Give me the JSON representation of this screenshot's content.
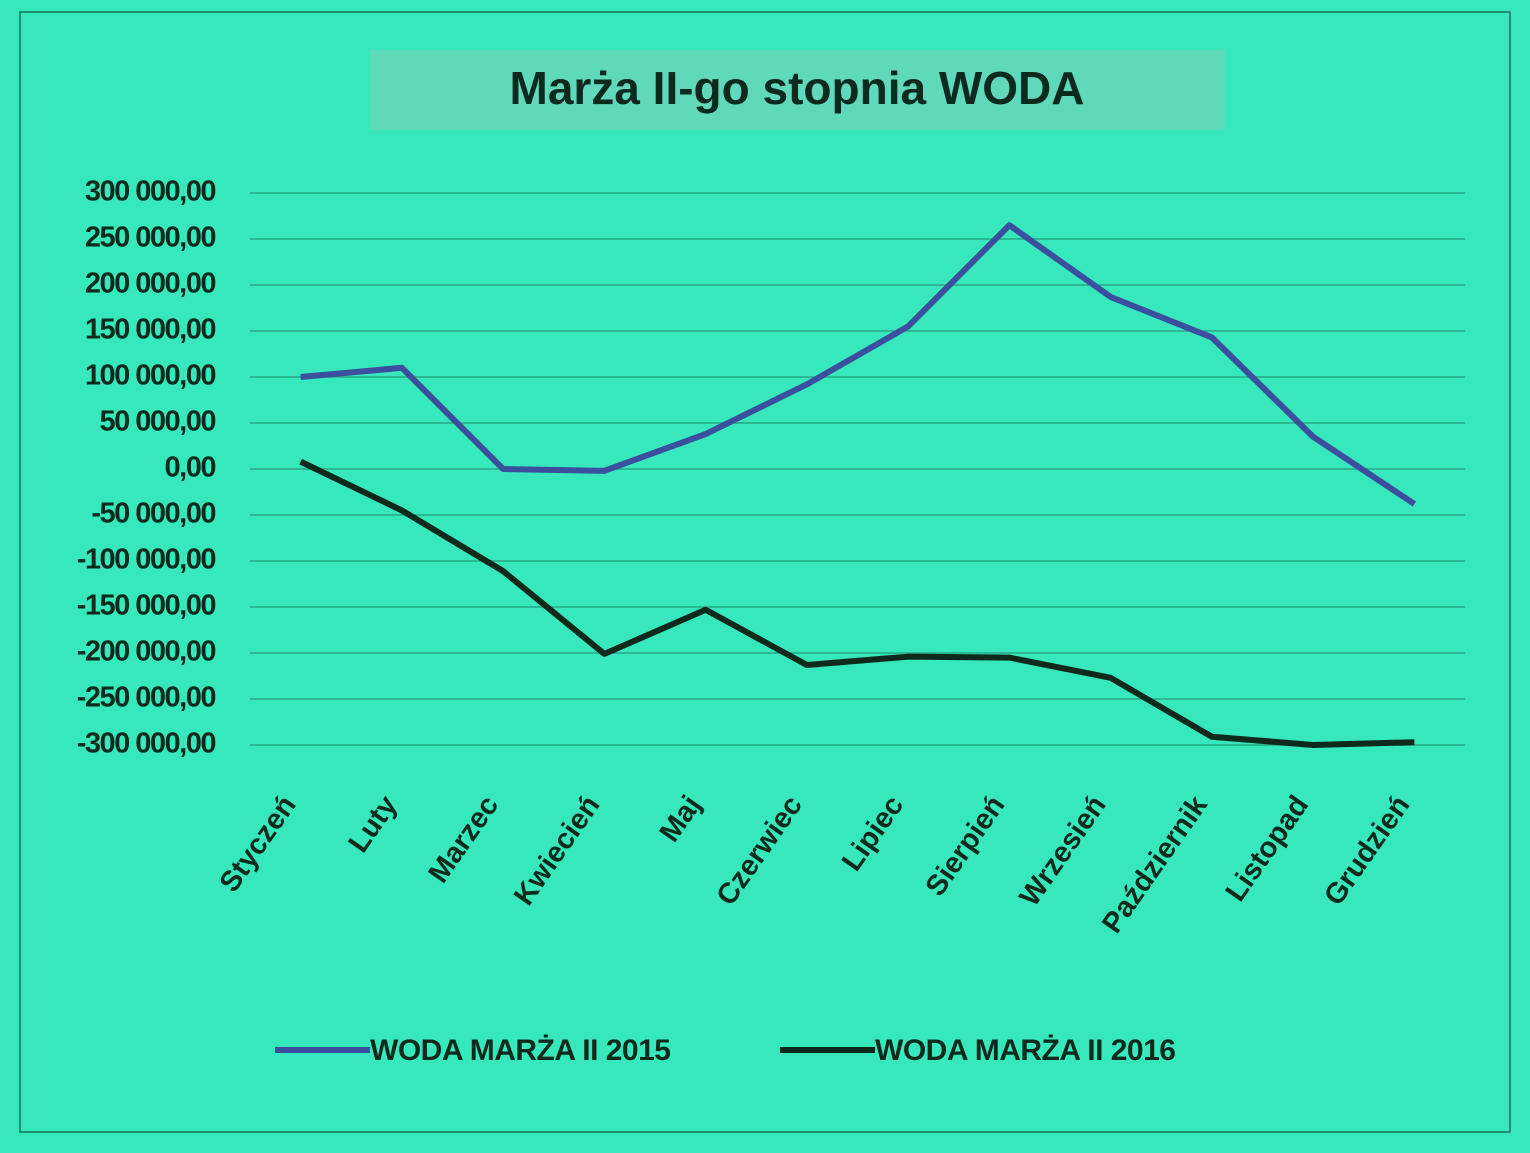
{
  "chart_data": {
    "type": "line",
    "title": "Marża II-go stopnia WODA",
    "categories": [
      "Styczeń",
      "Luty",
      "Marzec",
      "Kwiecień",
      "Maj",
      "Czerwiec",
      "Lipiec",
      "Sierpień",
      "Wrzesień",
      "Październik",
      "Listopad",
      "Grudzień"
    ],
    "series": [
      {
        "name": "WODA MARŻA II 2015",
        "color": "#3b4f9e",
        "values": [
          100000,
          110000,
          0,
          -2000,
          38000,
          92000,
          155000,
          265000,
          187000,
          143000,
          35000,
          -38000
        ]
      },
      {
        "name": "WODA MARŻA II 2016",
        "color": "#0e2a1c",
        "values": [
          8000,
          -45000,
          -111000,
          -201000,
          -153000,
          -213000,
          -204000,
          -205000,
          -227000,
          -291000,
          -300000,
          -297000
        ]
      }
    ],
    "ylim": [
      -300000,
      300000
    ],
    "yticks": [
      {
        "value": 300000,
        "label": "300 000,00"
      },
      {
        "value": 250000,
        "label": "250 000,00"
      },
      {
        "value": 200000,
        "label": "200 000,00"
      },
      {
        "value": 150000,
        "label": "150 000,00"
      },
      {
        "value": 100000,
        "label": "100 000,00"
      },
      {
        "value": 50000,
        "label": "50 000,00"
      },
      {
        "value": 0,
        "label": "0,00"
      },
      {
        "value": -50000,
        "label": "-50 000,00"
      },
      {
        "value": -100000,
        "label": "-100 000,00"
      },
      {
        "value": -150000,
        "label": "-150 000,00"
      },
      {
        "value": -200000,
        "label": "-200 000,00"
      },
      {
        "value": -250000,
        "label": "-250 000,00"
      },
      {
        "value": -300000,
        "label": "-300 000,00"
      }
    ],
    "grid": true,
    "legend": "bottom"
  }
}
